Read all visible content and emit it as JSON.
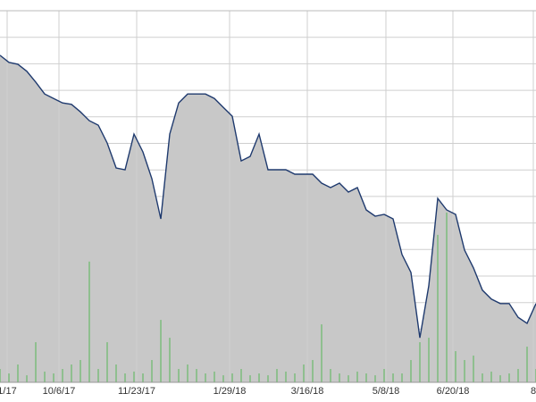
{
  "chart_data": {
    "type": "area",
    "series": [
      {
        "type": "area",
        "color": "#1f3a6e",
        "fill": "#c8c8c8",
        "values": [
          88.0,
          86.1,
          85.6,
          83.7,
          80.8,
          77.6,
          76.4,
          75.2,
          74.8,
          72.8,
          70.4,
          69.2,
          64.4,
          57.7,
          57.2,
          66.8,
          62.0,
          54.8,
          44.0,
          66.8,
          75.2,
          77.6,
          77.6,
          77.6,
          76.4,
          74.0,
          71.6,
          59.6,
          60.8,
          66.8,
          57.2,
          57.2,
          57.2,
          56.0,
          56.0,
          56.0,
          53.6,
          52.4,
          53.6,
          51.2,
          52.4,
          46.4,
          44.7,
          45.2,
          44.0,
          34.4,
          29.6,
          12.0,
          26.0,
          49.5,
          46.4,
          45.2,
          35.6,
          30.8,
          24.8,
          22.4,
          21.2,
          21.2,
          17.5,
          15.9,
          21.2
        ]
      },
      {
        "type": "bar",
        "color": "#8fbf8f",
        "values": [
          3.6,
          2.4,
          4.8,
          1.9,
          10.8,
          2.9,
          2.4,
          3.6,
          4.8,
          6.0,
          32.5,
          3.6,
          10.8,
          4.8,
          2.4,
          2.9,
          2.4,
          6.0,
          16.8,
          12.0,
          3.6,
          4.8,
          3.6,
          2.4,
          2.9,
          1.9,
          2.4,
          3.6,
          1.9,
          2.4,
          1.9,
          3.6,
          2.9,
          2.4,
          4.8,
          6.0,
          15.6,
          3.6,
          2.4,
          1.9,
          2.9,
          2.4,
          1.9,
          3.6,
          2.4,
          2.4,
          6.0,
          10.8,
          12.0,
          39.7,
          45.7,
          8.4,
          6.0,
          7.2,
          2.4,
          2.9,
          1.9,
          2.4,
          3.6,
          9.6,
          3.6
        ]
      }
    ],
    "xlim": [
      0,
      60
    ],
    "xticks": [
      {
        "value": 0.8,
        "label": "1/17"
      },
      {
        "value": 6.6,
        "label": "10/6/17"
      },
      {
        "value": 15.3,
        "label": "11/23/17"
      },
      {
        "value": 25.7,
        "label": "1/29/18"
      },
      {
        "value": 34.4,
        "label": "3/16/18"
      },
      {
        "value": 43.2,
        "label": "5/8/18"
      },
      {
        "value": 50.7,
        "label": "6/20/18"
      },
      {
        "value": 59.7,
        "label": "8"
      }
    ],
    "ylim": [
      0,
      100
    ],
    "grid": true
  }
}
